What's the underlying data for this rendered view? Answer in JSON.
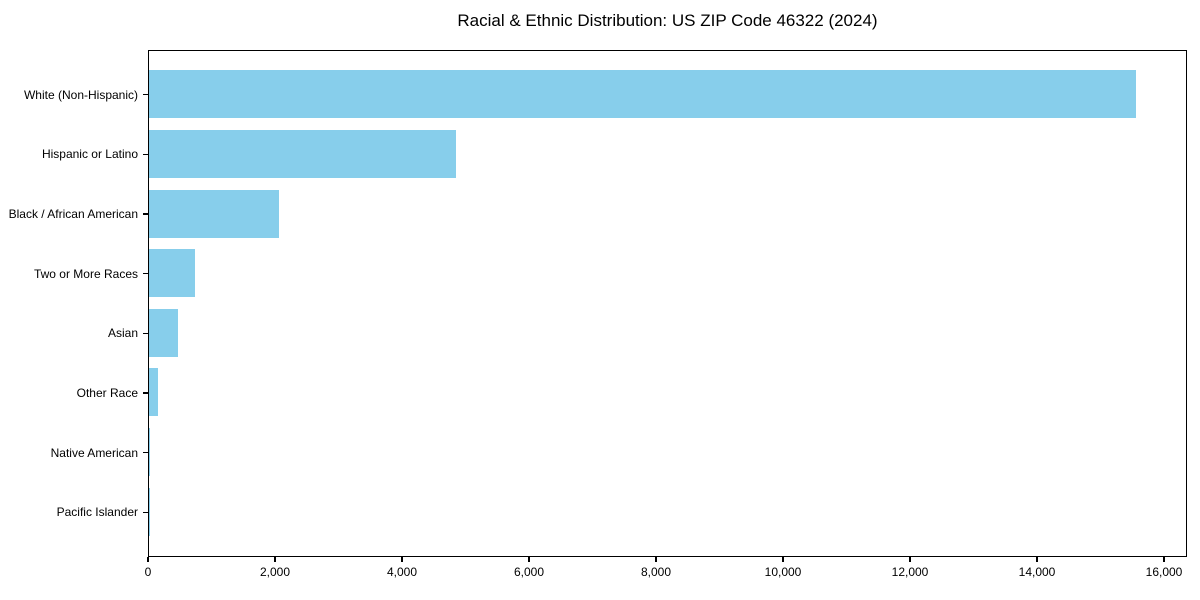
{
  "chart_data": {
    "type": "bar",
    "orientation": "horizontal",
    "title": "Racial & Ethnic Distribution: US ZIP Code 46322 (2024)",
    "categories": [
      "White (Non-Hispanic)",
      "Hispanic or Latino",
      "Black / African American",
      "Two or More Races",
      "Asian",
      "Other Race",
      "Native American",
      "Pacific Islander"
    ],
    "values": [
      15550,
      4830,
      2055,
      730,
      450,
      140,
      20,
      10
    ],
    "xlabel": "",
    "ylabel": "",
    "xlim": [
      0,
      16362
    ],
    "xticks": [
      0,
      2000,
      4000,
      6000,
      8000,
      10000,
      12000,
      14000,
      16000
    ],
    "xtick_labels": [
      "0",
      "2,000",
      "4,000",
      "6,000",
      "8,000",
      "10,000",
      "12,000",
      "14,000",
      "16,000"
    ],
    "grid": false,
    "legend": false,
    "bar_color": "#87CEEB",
    "axis_color": "#000000",
    "text_color": "#000000"
  }
}
